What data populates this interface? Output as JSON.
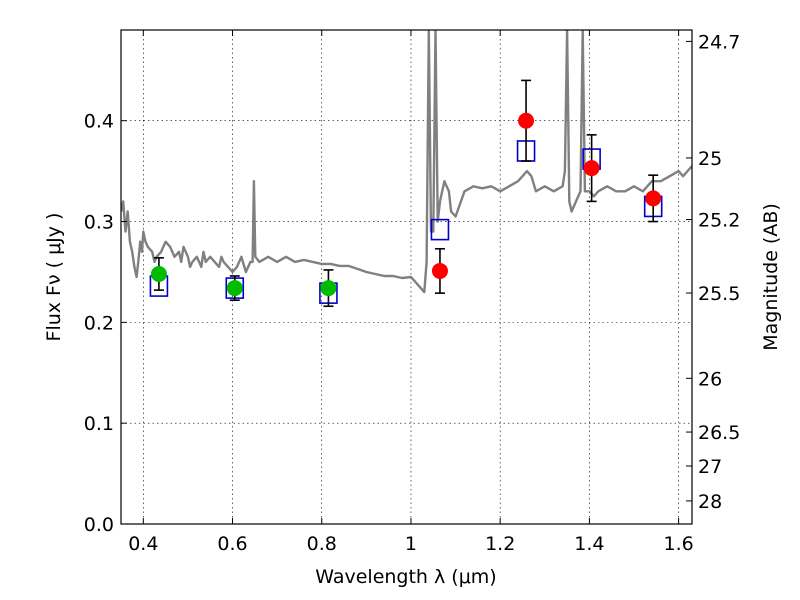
{
  "chart_data": {
    "type": "scatter",
    "xlabel": "Wavelength  λ (μm)",
    "ylabel": "Flux  Fν  ( μJy )",
    "ylabel_right": "Magnitude (AB)",
    "xlim": [
      0.35,
      1.63
    ],
    "ylim": [
      0.0,
      0.49
    ],
    "x_ticks": [
      0.4,
      0.6,
      0.8,
      1.0,
      1.2,
      1.4,
      1.6
    ],
    "x_tick_labels": [
      "0.4",
      "0.6",
      "0.8",
      "1",
      "1.2",
      "1.4",
      "1.6"
    ],
    "y_ticks": [
      0.0,
      0.1,
      0.2,
      0.3,
      0.4
    ],
    "y_tick_labels": [
      "0.0",
      "0.1",
      "0.2",
      "0.3",
      "0.4"
    ],
    "right_ticks": [
      {
        "flux": 0.4787,
        "label": "24.7"
      },
      {
        "flux": 0.3631,
        "label": "25"
      },
      {
        "flux": 0.302,
        "label": "25.2"
      },
      {
        "flux": 0.2291,
        "label": "25.5"
      },
      {
        "flux": 0.1445,
        "label": "26"
      },
      {
        "flux": 0.0912,
        "label": "26.5"
      },
      {
        "flux": 0.0575,
        "label": "27"
      },
      {
        "flux": 0.0229,
        "label": "28"
      }
    ],
    "grid": true,
    "colors": {
      "model": "#808080",
      "optical": "#00bb00",
      "nir": "#ff0000",
      "model_box": "#0000cc",
      "errorbar": "#000000"
    },
    "series": [
      {
        "kind": "line",
        "x": [
          0.35,
          0.355,
          0.36,
          0.365,
          0.37,
          0.375,
          0.38,
          0.385,
          0.39,
          0.393,
          0.397,
          0.4,
          0.405,
          0.41,
          0.42,
          0.425,
          0.43,
          0.44,
          0.45,
          0.46,
          0.47,
          0.48,
          0.485,
          0.49,
          0.5,
          0.505,
          0.51,
          0.52,
          0.53,
          0.535,
          0.54,
          0.55,
          0.56,
          0.57,
          0.575,
          0.58,
          0.59,
          0.6,
          0.61,
          0.62,
          0.63,
          0.64,
          0.645,
          0.648,
          0.651,
          0.66,
          0.68,
          0.7,
          0.72,
          0.74,
          0.76,
          0.78,
          0.8,
          0.82,
          0.84,
          0.86,
          0.88,
          0.9,
          0.92,
          0.94,
          0.96,
          0.98,
          1.0,
          1.01,
          1.02,
          1.03,
          1.035,
          1.04,
          1.045,
          1.05,
          1.055,
          1.06,
          1.065,
          1.07,
          1.075,
          1.08,
          1.085,
          1.09,
          1.1,
          1.12,
          1.14,
          1.16,
          1.18,
          1.2,
          1.22,
          1.24,
          1.25,
          1.26,
          1.27,
          1.28,
          1.3,
          1.32,
          1.34,
          1.345,
          1.35,
          1.355,
          1.36,
          1.37,
          1.38,
          1.385,
          1.39,
          1.4,
          1.41,
          1.42,
          1.44,
          1.46,
          1.48,
          1.5,
          1.52,
          1.54,
          1.56,
          1.58,
          1.6,
          1.61,
          1.62,
          1.63
        ],
        "y": [
          0.31,
          0.32,
          0.29,
          0.31,
          0.28,
          0.27,
          0.255,
          0.245,
          0.265,
          0.28,
          0.27,
          0.29,
          0.28,
          0.275,
          0.27,
          0.26,
          0.265,
          0.27,
          0.28,
          0.275,
          0.265,
          0.27,
          0.26,
          0.275,
          0.265,
          0.255,
          0.26,
          0.265,
          0.255,
          0.27,
          0.26,
          0.265,
          0.26,
          0.255,
          0.265,
          0.26,
          0.255,
          0.25,
          0.255,
          0.265,
          0.25,
          0.26,
          0.26,
          0.34,
          0.265,
          0.26,
          0.265,
          0.26,
          0.265,
          0.26,
          0.262,
          0.26,
          0.258,
          0.258,
          0.256,
          0.256,
          0.253,
          0.25,
          0.248,
          0.246,
          0.246,
          0.244,
          0.245,
          0.24,
          0.235,
          0.23,
          0.26,
          0.49,
          0.29,
          0.29,
          0.49,
          0.3,
          0.32,
          0.33,
          0.34,
          0.335,
          0.33,
          0.31,
          0.305,
          0.33,
          0.335,
          0.333,
          0.335,
          0.33,
          0.335,
          0.34,
          0.345,
          0.35,
          0.345,
          0.33,
          0.335,
          0.33,
          0.335,
          0.35,
          0.49,
          0.32,
          0.31,
          0.32,
          0.33,
          0.49,
          0.33,
          0.33,
          0.325,
          0.33,
          0.335,
          0.33,
          0.33,
          0.335,
          0.33,
          0.34,
          0.34,
          0.345,
          0.35,
          0.345,
          0.35,
          0.355
        ]
      },
      {
        "name": "optical",
        "kind": "points",
        "x": [
          0.435,
          0.605,
          0.815
        ],
        "y": [
          0.248,
          0.234,
          0.234
        ],
        "yerr": [
          0.016,
          0.012,
          0.018
        ]
      },
      {
        "name": "nir",
        "kind": "points",
        "x": [
          1.065,
          1.258,
          1.405,
          1.543
        ],
        "y": [
          0.251,
          0.4,
          0.353,
          0.323
        ],
        "yerr": [
          0.022,
          0.04,
          0.033,
          0.023
        ]
      },
      {
        "name": "model",
        "kind": "boxes",
        "x": [
          0.435,
          0.605,
          0.815,
          1.065,
          1.258,
          1.405,
          1.543
        ],
        "y": [
          0.236,
          0.234,
          0.229,
          0.292,
          0.37,
          0.362,
          0.315
        ]
      }
    ]
  }
}
